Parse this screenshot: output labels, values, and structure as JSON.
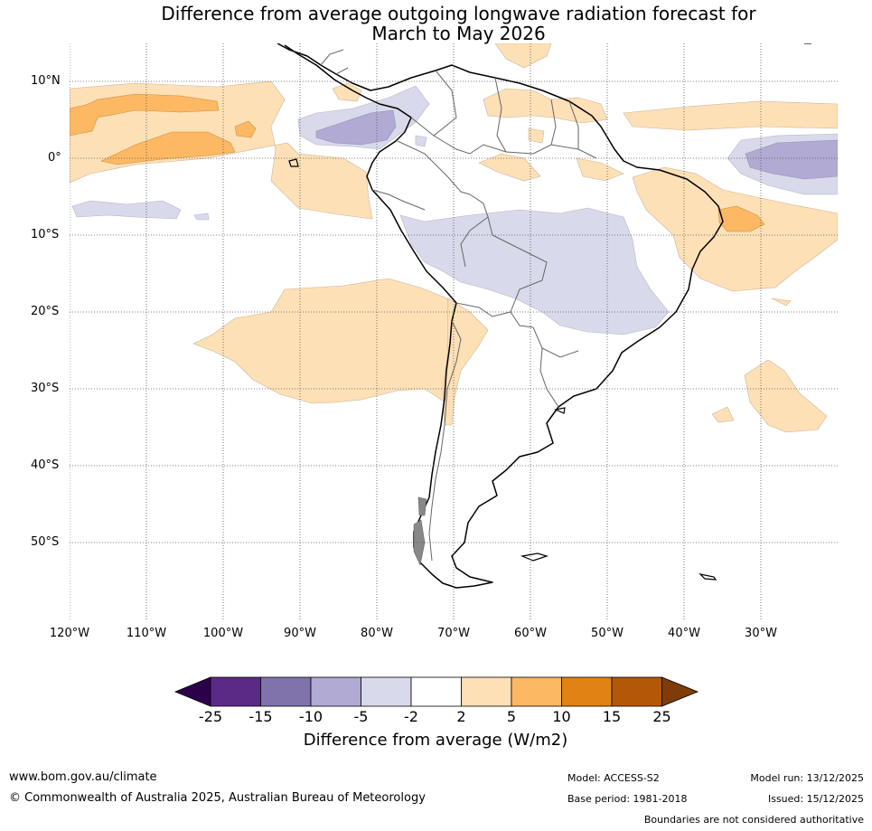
{
  "title": {
    "line1": "Difference from average outgoing longwave radiation forecast for",
    "line2": "March to May 2026"
  },
  "map": {
    "lat_labels": [
      "10°N",
      "0°",
      "10°S",
      "20°S",
      "30°S",
      "40°S",
      "50°S"
    ],
    "lat_values": [
      10,
      0,
      -10,
      -20,
      -30,
      -40,
      -50
    ],
    "lon_labels": [
      "120°W",
      "110°W",
      "100°W",
      "90°W",
      "80°W",
      "70°W",
      "60°W",
      "50°W",
      "40°W",
      "30°W"
    ],
    "lon_values": [
      -120,
      -110,
      -100,
      -90,
      -80,
      -70,
      -60,
      -50,
      -40,
      -30
    ],
    "extent": {
      "lon_min": -120,
      "lon_max": -20,
      "lat_min": -60,
      "lat_max": 15
    }
  },
  "colorbar": {
    "ticks": [
      "-25",
      "-15",
      "-10",
      "-5",
      "-2",
      "2",
      "5",
      "10",
      "15",
      "25"
    ],
    "colors": [
      "#5b2a87",
      "#8073ac",
      "#b1aad2",
      "#d8d9ea",
      "#ffffff",
      "#fee0b6",
      "#fdb863",
      "#e08214",
      "#b35806"
    ],
    "under_color": "#2d004b",
    "over_color": "#7f3b08",
    "label": "Difference from average (W/m2)"
  },
  "footer": {
    "url": "www.bom.gov.au/climate",
    "copyright": "© Commonwealth of Australia 2025, Australian Bureau of Meteorology",
    "model": "Model: ACCESS-S2",
    "base_period": "Base period: 1981-2018",
    "model_run": "Model run: 13/12/2025",
    "issued": "Issued: 15/12/2025",
    "disclaimer": "Boundaries are not considered authoritative"
  }
}
